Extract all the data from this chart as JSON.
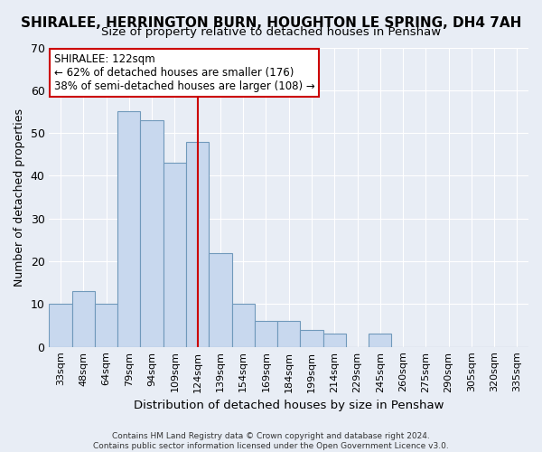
{
  "title": "SHIRALEE, HERRINGTON BURN, HOUGHTON LE SPRING, DH4 7AH",
  "subtitle": "Size of property relative to detached houses in Penshaw",
  "xlabel": "Distribution of detached houses by size in Penshaw",
  "ylabel": "Number of detached properties",
  "bar_color": "#c8d8ee",
  "bar_edge_color": "#7099bb",
  "background_color": "#e8edf5",
  "categories": [
    "33sqm",
    "48sqm",
    "64sqm",
    "79sqm",
    "94sqm",
    "109sqm",
    "124sqm",
    "139sqm",
    "154sqm",
    "169sqm",
    "184sqm",
    "199sqm",
    "214sqm",
    "229sqm",
    "245sqm",
    "260sqm",
    "275sqm",
    "290sqm",
    "305sqm",
    "320sqm",
    "335sqm"
  ],
  "values": [
    10,
    13,
    10,
    55,
    53,
    43,
    48,
    22,
    10,
    6,
    6,
    4,
    3,
    0,
    3,
    0,
    0,
    0,
    0,
    0,
    0
  ],
  "ylim": [
    0,
    70
  ],
  "yticks": [
    0,
    10,
    20,
    30,
    40,
    50,
    60,
    70
  ],
  "annotation_title": "SHIRALEE: 122sqm",
  "annotation_line1": "← 62% of detached houses are smaller (176)",
  "annotation_line2": "38% of semi-detached houses are larger (108) →",
  "annotation_box_color": "#ffffff",
  "annotation_box_edge": "#cc0000",
  "marker_line_index": 6,
  "marker_line_color": "#cc0000",
  "footer_line1": "Contains HM Land Registry data © Crown copyright and database right 2024.",
  "footer_line2": "Contains public sector information licensed under the Open Government Licence v3.0.",
  "grid_color": "#ffffff",
  "title_fontsize": 11,
  "subtitle_fontsize": 9.5,
  "ylabel_fontsize": 9,
  "xlabel_fontsize": 9.5
}
